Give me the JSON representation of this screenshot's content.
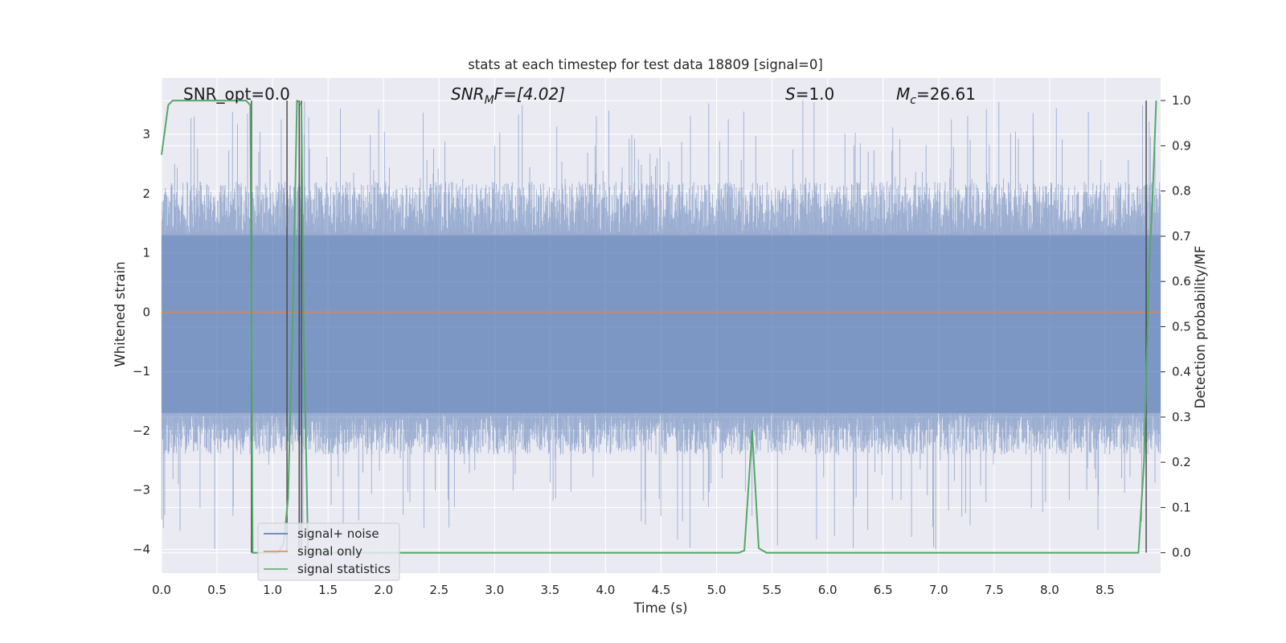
{
  "chart_data": {
    "type": "line",
    "title": "stats at each timestep for test data 18809 [signal=0]",
    "xlabel": "Time (s)",
    "ylabel": "Whitened strain",
    "ylabel_right": "Detection probability/MF",
    "xlim": [
      0.0,
      9.0
    ],
    "ylim": [
      -4.4,
      3.95
    ],
    "ylim_right": [
      -0.045,
      1.05
    ],
    "x_ticks": [
      "0.0",
      "0.5",
      "1.0",
      "1.5",
      "2.0",
      "2.5",
      "3.0",
      "3.5",
      "4.0",
      "4.5",
      "5.0",
      "5.5",
      "6.0",
      "6.5",
      "7.0",
      "7.5",
      "8.0",
      "8.5"
    ],
    "y_ticks": [
      "−4",
      "−3",
      "−2",
      "−1",
      "0",
      "1",
      "2",
      "3"
    ],
    "y_ticks_right": [
      "0.0",
      "0.1",
      "0.2",
      "0.3",
      "0.4",
      "0.5",
      "0.6",
      "0.7",
      "0.8",
      "0.9",
      "1.0"
    ],
    "grid": true,
    "legend_position": "lower-left",
    "annotations": {
      "snr_opt": "SNR_opt=0.0",
      "snr_mf_main": "SNR",
      "snr_mf_sub": "M",
      "snr_mf_tail": "F=[4.02]",
      "s_main": "S",
      "s_tail": "=1.0",
      "mc_main": "M",
      "mc_sub": "c",
      "mc_tail": "=26.61"
    },
    "series": [
      {
        "name": "signal+ noise",
        "color": "#4c72b0",
        "axis": "left",
        "description_values": "dense whitened noise, approx. uniform amplitude",
        "envelope_core": [
          -1.7,
          1.3
        ],
        "peak_max": 3.6,
        "peak_min": -4.0
      },
      {
        "name": "signal only",
        "color": "#dd8452",
        "axis": "left",
        "x": [
          0.0,
          9.0
        ],
        "y": [
          0.0,
          0.0
        ]
      },
      {
        "name": "signal statistics",
        "color": "#55a868",
        "axis": "right",
        "x": [
          0.0,
          0.06,
          0.1,
          0.2,
          0.3,
          0.4,
          0.5,
          0.6,
          0.7,
          0.76,
          0.8,
          0.82,
          0.86,
          0.9,
          1.0,
          1.05,
          1.1,
          1.14,
          1.18,
          1.22,
          1.26,
          1.28,
          1.32,
          1.4,
          1.6,
          2.0,
          3.0,
          4.0,
          5.0,
          5.2,
          5.25,
          5.32,
          5.38,
          5.45,
          6.0,
          7.0,
          8.0,
          8.8,
          8.85,
          8.9,
          8.93,
          8.96
        ],
        "y": [
          0.88,
          0.99,
          1.0,
          1.0,
          1.0,
          1.0,
          1.0,
          1.0,
          1.0,
          1.0,
          0.99,
          0.0,
          0.0,
          0.0,
          0.0,
          0.0,
          0.02,
          0.12,
          0.5,
          1.0,
          0.99,
          0.5,
          0.0,
          0.0,
          0.0,
          0.0,
          0.0,
          0.0,
          0.0,
          0.0,
          0.005,
          0.27,
          0.01,
          0.0,
          0.0,
          0.0,
          0.0,
          0.0,
          0.2,
          0.65,
          0.8,
          1.0
        ]
      }
    ],
    "vertical_lines_x": [
      0.81,
      1.13,
      1.24,
      1.26,
      8.87
    ]
  }
}
